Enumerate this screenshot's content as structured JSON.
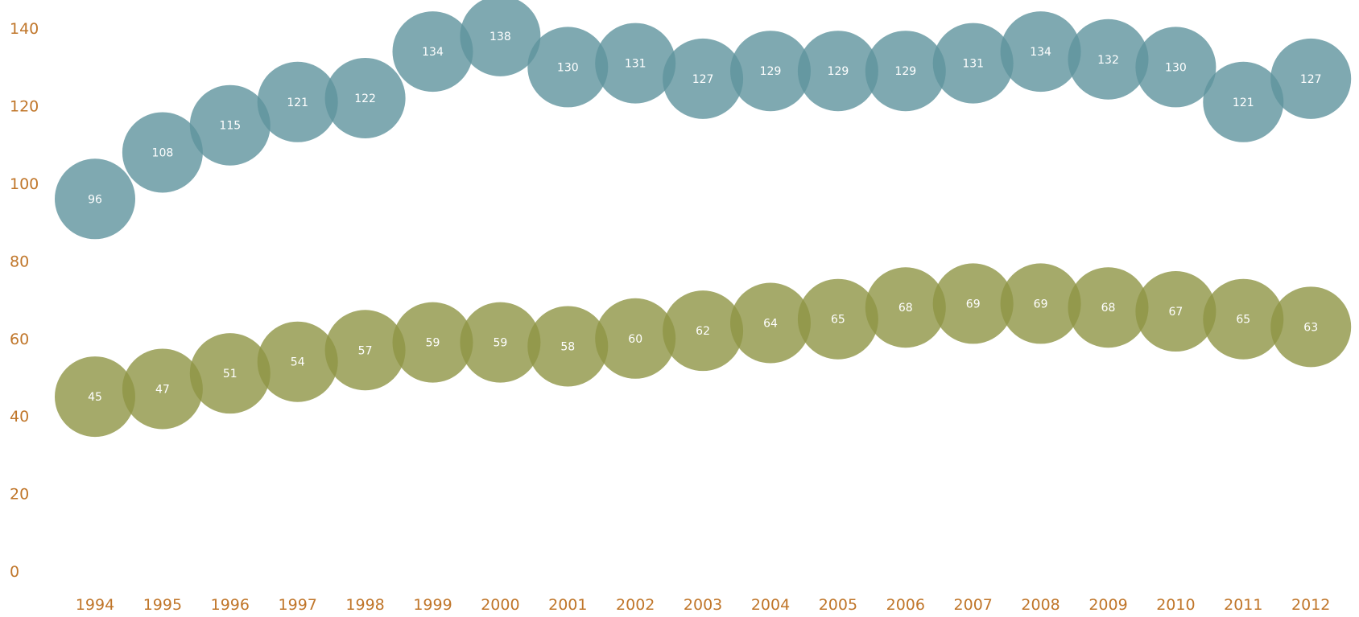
{
  "chart_data": {
    "type": "scatter",
    "title": "",
    "xlabel": "",
    "ylabel": "",
    "ylim": [
      0,
      140
    ],
    "y_ticks": [
      0,
      20,
      40,
      60,
      80,
      100,
      120,
      140
    ],
    "categories": [
      "1994",
      "1995",
      "1996",
      "1997",
      "1998",
      "1999",
      "2000",
      "2001",
      "2002",
      "2003",
      "2004",
      "2005",
      "2006",
      "2007",
      "2008",
      "2009",
      "2010",
      "2011",
      "2012"
    ],
    "series": [
      {
        "values": [
          96,
          108,
          115,
          121,
          122,
          134,
          138,
          130,
          131,
          127,
          129,
          129,
          129,
          131,
          134,
          132,
          130,
          121,
          127
        ],
        "labels": [
          "96",
          "108",
          "115",
          "121",
          "122",
          "134",
          "138",
          "130",
          "131",
          "127",
          "129",
          "129",
          "129",
          "131",
          "134",
          "132",
          "130",
          "121",
          "127"
        ],
        "color": "#5f939e"
      },
      {
        "values": [
          45,
          47,
          51,
          54,
          57,
          59,
          59,
          58,
          60,
          62,
          64,
          65,
          68,
          69,
          69,
          68,
          67,
          65,
          63
        ],
        "labels": [
          "45",
          "47",
          "51",
          "54",
          "57",
          "59",
          "59",
          "58",
          "60",
          "62",
          "64",
          "65",
          "68",
          "69",
          "69",
          "68",
          "67",
          "65",
          "63"
        ],
        "color": "#8e9545"
      }
    ],
    "grid": false,
    "legend": "none",
    "axis_label_color": "#c0762a"
  }
}
